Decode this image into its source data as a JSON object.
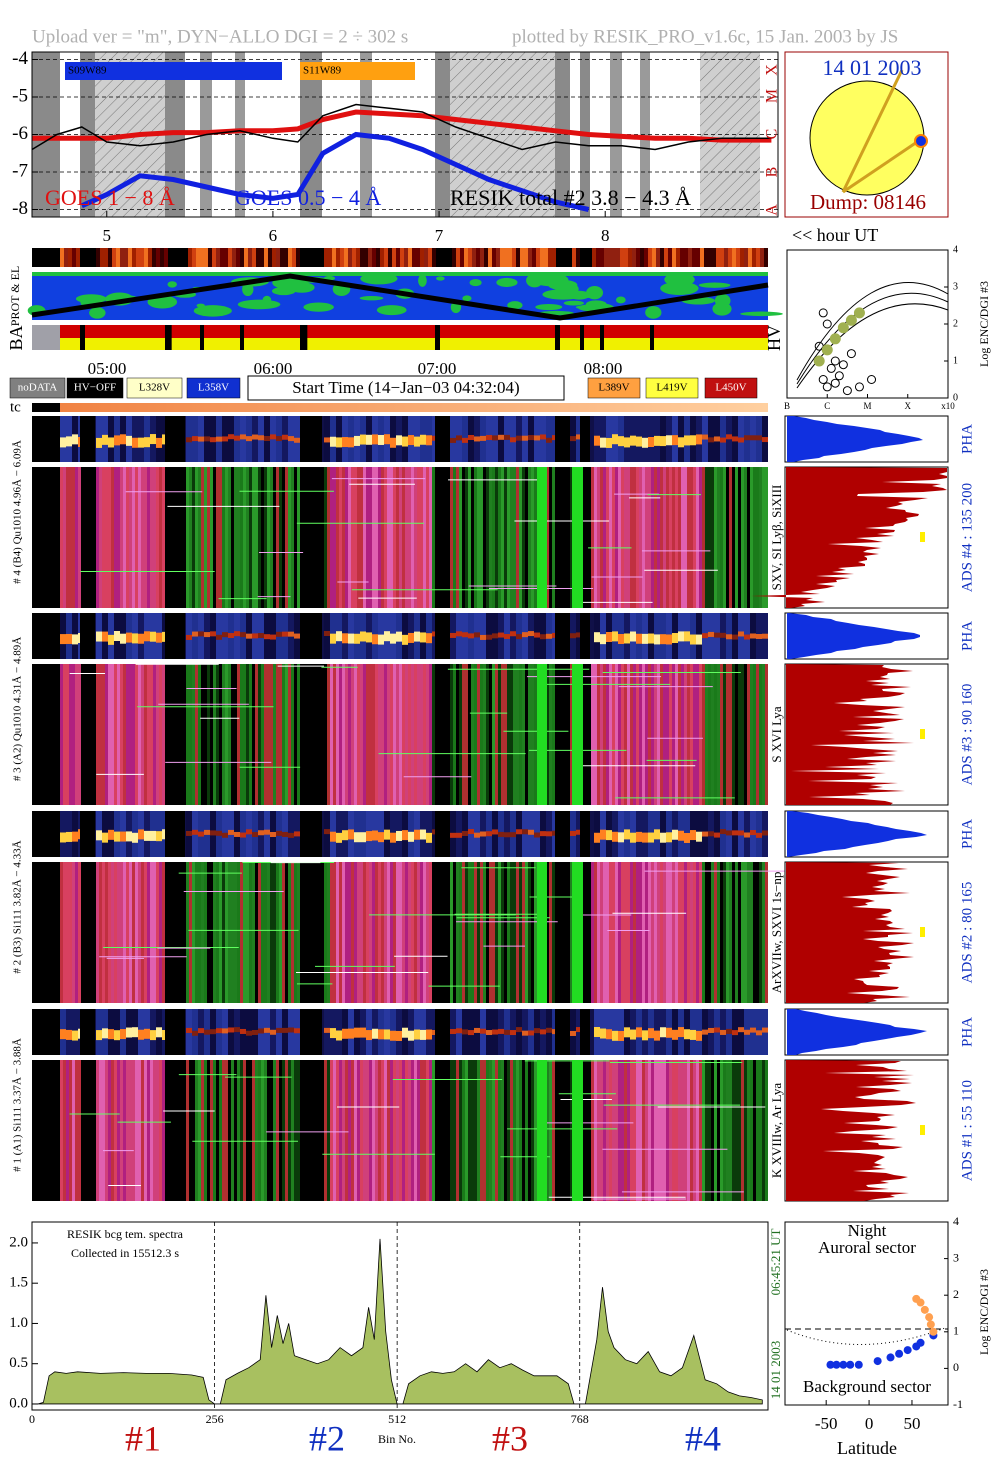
{
  "header": {
    "left": "Upload ver = \"m\", DYN−ALLO DGI =   2 ÷ 302 s",
    "right": "plotted by RESIK_PRO_v1.6c, 15 Jan. 2003 by JS"
  },
  "sun": {
    "date": "14 01 2003",
    "dump": "Dump: 08146"
  },
  "hour_unit": "<< hour UT",
  "strips": {
    "prot_el": "PROT & EL",
    "ba": "BA",
    "hv": "HV",
    "tc": "tc"
  },
  "time_labels": [
    "05:00",
    "06:00",
    "07:00",
    "08:00"
  ],
  "legend_buttons": [
    "noDATA",
    "HV−OFF",
    "L328V",
    "L358V",
    "L389V",
    "L419V",
    "L450V"
  ],
  "start_time": "Start Time (14−Jan−03 04:32:04)",
  "detectors": [
    {
      "label": "# 4 (B4) Qu1010 4.96Å − 6.09Å",
      "lines": "SXV, SI Lyβ, SiXIII",
      "ads": "ADS #4 :   135 200",
      "pha": "PHA"
    },
    {
      "label": "# 3 (A2) Qu1010 4.31Å − 4.89Å",
      "lines": "S XVI Lya",
      "ads": "ADS #3 :   90 160",
      "pha": "PHA"
    },
    {
      "label": "# 2 (B3) Si111 3.82Å − 4.33Å",
      "lines": "ArXVIIw, SXVI 1s−np",
      "ads": "ADS #2 :   80 165",
      "pha": "PHA"
    },
    {
      "label": "# 1 (A1) Si111 3.37Å − 3.88Å",
      "lines": "K XVIIIw, Ar Lya",
      "ads": "ADS #1 :   55 110",
      "pha": "PHA"
    }
  ],
  "chart_data": [
    {
      "type": "line",
      "x": [
        4.55,
        4.7,
        4.85,
        5.0,
        5.2,
        5.4,
        5.6,
        5.8,
        6.0,
        6.15,
        6.3,
        6.5,
        6.7,
        6.9,
        7.1,
        7.3,
        7.5,
        7.7,
        7.9,
        8.1,
        8.3,
        8.5,
        8.7,
        9.0
      ],
      "series": [
        {
          "name": "GOES 1 − 8 Å",
          "color": "#e01010",
          "values": [
            -6.1,
            -6.1,
            -6.1,
            -6.1,
            -6.0,
            -5.95,
            -5.95,
            -5.9,
            -5.9,
            -5.85,
            -5.6,
            -5.4,
            -5.45,
            -5.5,
            -5.6,
            -5.7,
            -5.8,
            -5.9,
            -6.0,
            -6.05,
            -6.1,
            -6.1,
            -6.15,
            -6.15
          ]
        },
        {
          "name": "GOES 0.5 − 4 Å",
          "color": "#1020e0",
          "values": [
            null,
            null,
            -7.9,
            -7.6,
            -7.1,
            -7.2,
            -7.4,
            -7.6,
            -7.7,
            -7.6,
            -6.5,
            -6.0,
            -6.1,
            -6.4,
            -6.8,
            -7.2,
            -7.5,
            -7.8,
            -8.0,
            null,
            null,
            null,
            null,
            null
          ]
        },
        {
          "name": "RESIK total #2  3.8 − 4.3 Å",
          "color": "#000000",
          "values": [
            -6.4,
            -6.0,
            -5.8,
            -6.2,
            -6.3,
            -6.2,
            -6.0,
            -5.9,
            -6.1,
            -6.2,
            -5.5,
            -5.2,
            -5.3,
            -5.4,
            -5.8,
            -6.1,
            -6.4,
            -6.2,
            -6.3,
            -6.3,
            -6.4,
            -6.2,
            -6.1,
            -6.1
          ]
        }
      ],
      "annotations": [
        "S09W89",
        "S11W89"
      ],
      "classes": [
        "X",
        "M",
        "C",
        "B",
        "A"
      ],
      "xlim": [
        4.55,
        9.04
      ],
      "xticks": [
        5,
        6,
        7,
        8
      ],
      "ylim": [
        -8.2,
        -3.8
      ],
      "yticks": [
        -4,
        -5,
        -6,
        -7,
        -8
      ],
      "grid": true
    },
    {
      "type": "area",
      "x": [
        0,
        8,
        16,
        24,
        32,
        48,
        64,
        96,
        128,
        160,
        192,
        224,
        240,
        248,
        256,
        264,
        272,
        288,
        304,
        320,
        328,
        336,
        344,
        352,
        360,
        368,
        384,
        400,
        416,
        432,
        448,
        464,
        472,
        480,
        488,
        496,
        504,
        512,
        520,
        528,
        544,
        560,
        576,
        592,
        608,
        624,
        640,
        656,
        672,
        688,
        704,
        736,
        752,
        760,
        768,
        776,
        784,
        792,
        800,
        808,
        816,
        832,
        848,
        864,
        880,
        896,
        912,
        928,
        944,
        960,
        976,
        992,
        1008,
        1024
      ],
      "values": [
        0.0,
        0.0,
        0.02,
        0.35,
        0.4,
        0.38,
        0.4,
        0.38,
        0.39,
        0.38,
        0.38,
        0.36,
        0.33,
        0.05,
        0.0,
        0.0,
        0.3,
        0.38,
        0.45,
        0.55,
        1.35,
        0.7,
        1.1,
        0.75,
        1.0,
        0.6,
        0.55,
        0.5,
        0.55,
        0.7,
        0.6,
        0.7,
        1.2,
        0.8,
        2.05,
        0.9,
        0.3,
        0.0,
        0.0,
        0.25,
        0.35,
        0.4,
        0.38,
        0.4,
        0.5,
        0.4,
        0.55,
        0.45,
        0.5,
        0.42,
        0.35,
        0.35,
        0.25,
        0.0,
        0.0,
        0.0,
        0.4,
        0.8,
        1.45,
        0.9,
        0.7,
        0.55,
        0.5,
        0.65,
        0.4,
        0.35,
        0.45,
        0.85,
        0.3,
        0.25,
        0.15,
        0.1,
        0.08,
        0.05
      ],
      "color": "#a8c060",
      "annotations": [
        "RESIK bcg tem. spectra",
        "Collected in 15512.3 s"
      ],
      "x_label": "Bin No.",
      "side_labels": [
        "14 01 2003",
        "06:45:21 UT"
      ],
      "detector_labels": [
        "#1",
        "#2",
        "#3",
        "#4"
      ],
      "xlim": [
        0,
        1032
      ],
      "xticks": [
        0,
        256,
        512,
        768
      ],
      "ylim": [
        -0.075,
        2.26
      ],
      "yticks": [
        {
          "value": 0,
          "label": "0.0"
        },
        0.5,
        {
          "value": 1,
          "label": "1.0"
        },
        1.5,
        {
          "value": 2,
          "label": "2.0"
        }
      ]
    },
    {
      "type": "scatter",
      "series": [
        {
          "color": "#1030e0",
          "x": [
            -45,
            -38,
            -30,
            -22,
            -12,
            10,
            25,
            35,
            45,
            55,
            60,
            75
          ],
          "values": [
            0.1,
            0.1,
            0.1,
            0.1,
            0.1,
            0.2,
            0.3,
            0.4,
            0.5,
            0.6,
            0.7,
            0.9
          ]
        },
        {
          "color": "#ffa050",
          "x": [
            55,
            60,
            65,
            70,
            72,
            75
          ],
          "values": [
            1.9,
            1.8,
            1.6,
            1.4,
            1.2,
            1.0
          ]
        }
      ],
      "texts": [
        "Night",
        "Auroral sector",
        "Background sector"
      ],
      "x_label": "Latitude",
      "y_label": "Log ENC/DGI #3",
      "xlim": [
        -98,
        92
      ],
      "xticks": [
        -50,
        0,
        50
      ],
      "ylim": [
        -1,
        4
      ],
      "yticks": [
        -1,
        0,
        1,
        2,
        3,
        4
      ]
    },
    {
      "type": "scatter",
      "series": [
        {
          "color": "#000000",
          "x": [
            0.9,
            1.0,
            1.1,
            1.2,
            0.8,
            1.3,
            1.5,
            1.0,
            0.9,
            1.4,
            1.2,
            1.6,
            1.8,
            2.1
          ],
          "values": [
            0.5,
            0.3,
            0.8,
            1.0,
            1.4,
            0.6,
            0.2,
            2.0,
            2.3,
            0.9,
            0.4,
            1.2,
            0.3,
            0.5
          ]
        },
        {
          "color": "#a0b050",
          "x": [
            0.8,
            1.0,
            1.2,
            1.4,
            1.6,
            1.8
          ],
          "values": [
            1.0,
            1.3,
            1.6,
            1.9,
            2.1,
            2.3
          ]
        }
      ],
      "y_label": "Log ENC/DGI #3",
      "xlim": [
        0,
        4
      ],
      "xticks": [
        {
          "value": 0,
          "label": "B"
        },
        {
          "value": 1,
          "label": "C"
        },
        {
          "value": 2,
          "label": "M"
        },
        {
          "value": 3,
          "label": "X"
        },
        {
          "value": 4,
          "label": "x10"
        }
      ],
      "ylim": [
        0,
        4
      ],
      "yticks": [
        0,
        1,
        2,
        3,
        4
      ]
    }
  ]
}
